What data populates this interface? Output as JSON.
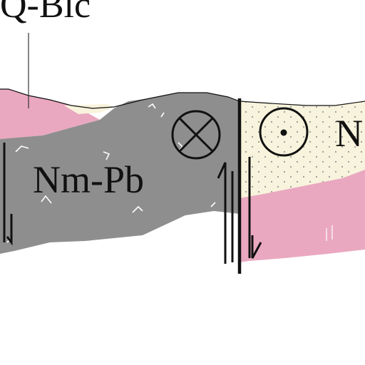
{
  "diagram": {
    "labels": {
      "top_unit": "Q-Blc",
      "left_unit": "Nm-Pb",
      "right_unit_partial": "N"
    },
    "symbols": {
      "left_block_motion": "cross-in-circle-icon",
      "right_block_motion": "dot-in-circle-icon"
    },
    "colors": {
      "pink_unit": "#eaa8c0",
      "gray_unit": "#8e8e8e",
      "cream_unit": "#f8f3dc",
      "stipple": "#999999",
      "line": "#111111",
      "marks": "#ffffff"
    }
  }
}
